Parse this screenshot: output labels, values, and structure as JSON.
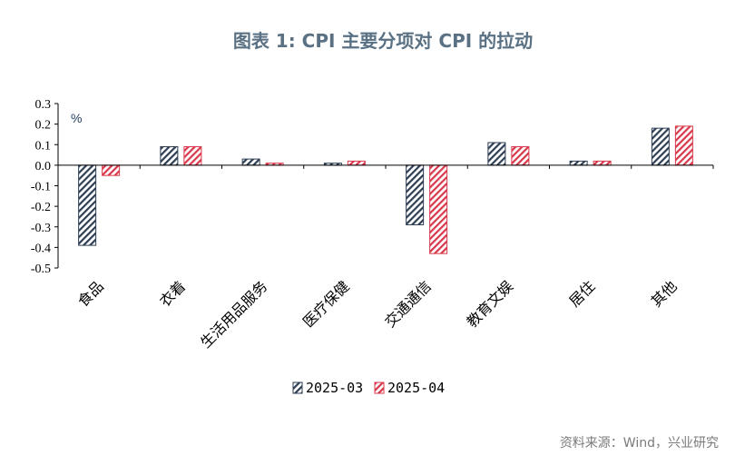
{
  "chart_data": {
    "type": "bar",
    "title": "图表 1:   CPI 主要分项对 CPI 的拉动",
    "unit_label": "%",
    "categories": [
      "食品",
      "衣着",
      "生活用品服务",
      "医疗保健",
      "交通通信",
      "教育文娱",
      "居住",
      "其他"
    ],
    "series": [
      {
        "name": "2025-03",
        "values": [
          -0.39,
          0.09,
          0.03,
          0.01,
          -0.29,
          0.11,
          0.02,
          0.18
        ],
        "color": "#2e3f55",
        "pattern": "diagonal-hatch"
      },
      {
        "name": "2025-04",
        "values": [
          -0.05,
          0.09,
          0.01,
          0.02,
          -0.43,
          0.09,
          0.02,
          0.19
        ],
        "color": "#d9384a",
        "pattern": "diagonal-hatch"
      }
    ],
    "ylim": [
      -0.5,
      0.3
    ],
    "yticks": [
      "0.3",
      "0.2",
      "0.1",
      "0.0",
      "-0.1",
      "-0.2",
      "-0.3",
      "-0.4",
      "-0.5"
    ],
    "ytick_values": [
      0.3,
      0.2,
      0.1,
      0.0,
      -0.1,
      -0.2,
      -0.3,
      -0.4,
      -0.5
    ],
    "legend_position": "bottom-center",
    "grid": false,
    "source": "资料来源：Wind，兴业研究"
  }
}
